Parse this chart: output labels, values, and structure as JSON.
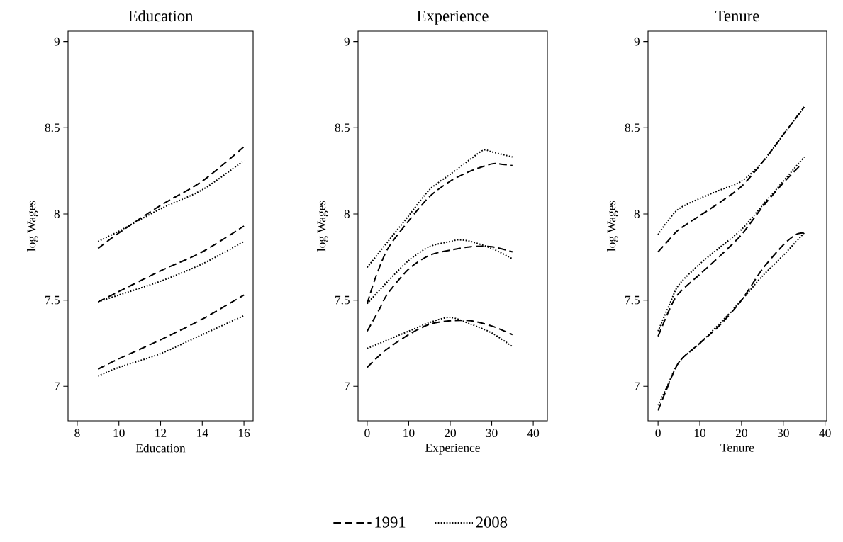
{
  "chart_data": [
    {
      "type": "line",
      "title": "Education",
      "xlabel": "Education",
      "ylabel": "log Wages",
      "xlim": [
        7.56,
        16.44
      ],
      "ylim": [
        6.8,
        9.06
      ],
      "xticks": [
        8,
        10,
        12,
        14,
        16
      ],
      "yticks": [
        7,
        7.5,
        8,
        8.5,
        9
      ],
      "legend": "bottom",
      "series": [
        {
          "name": "1991",
          "color": "#000000",
          "line_style": "dashed",
          "x": [
            9,
            10,
            12,
            14,
            16
          ],
          "values": [
            7.8,
            7.89,
            8.05,
            8.19,
            8.39
          ]
        },
        {
          "name": "2008",
          "color": "#000000",
          "line_style": "dotted",
          "x": [
            9,
            10,
            12,
            14,
            16
          ],
          "values": [
            7.84,
            7.9,
            8.03,
            8.14,
            8.31
          ]
        },
        {
          "color": "#000000",
          "line_style": "dashed",
          "x": [
            9,
            10,
            12,
            14,
            16
          ],
          "values": [
            7.49,
            7.55,
            7.67,
            7.78,
            7.93
          ]
        },
        {
          "color": "#000000",
          "line_style": "dotted",
          "x": [
            9,
            10,
            12,
            14,
            16
          ],
          "values": [
            7.49,
            7.53,
            7.61,
            7.71,
            7.84
          ]
        },
        {
          "color": "#000000",
          "line_style": "dashed",
          "x": [
            9,
            10,
            12,
            14,
            16
          ],
          "values": [
            7.1,
            7.16,
            7.27,
            7.39,
            7.53
          ]
        },
        {
          "color": "#000000",
          "line_style": "dotted",
          "x": [
            9,
            10,
            12,
            14,
            16
          ],
          "values": [
            7.06,
            7.11,
            7.19,
            7.3,
            7.41
          ]
        }
      ]
    },
    {
      "type": "line",
      "title": "Experience",
      "xlabel": "Experience",
      "ylabel": "log Wages",
      "xlim": [
        -2.2,
        43.4
      ],
      "ylim": [
        6.8,
        9.06
      ],
      "xticks": [
        0,
        10,
        20,
        30,
        40
      ],
      "yticks": [
        7,
        7.5,
        8,
        8.5,
        9
      ],
      "series": [
        {
          "color": "#000000",
          "line_style": "dashed",
          "x": [
            0,
            2,
            5,
            10,
            15,
            20,
            25,
            30,
            32,
            35
          ],
          "values": [
            7.48,
            7.63,
            7.8,
            7.96,
            8.1,
            8.19,
            8.25,
            8.29,
            8.29,
            8.28
          ]
        },
        {
          "color": "#000000",
          "line_style": "dotted",
          "x": [
            0,
            5,
            10,
            15,
            20,
            25,
            28,
            30,
            35
          ],
          "values": [
            7.69,
            7.84,
            7.99,
            8.14,
            8.23,
            8.32,
            8.37,
            8.36,
            8.33
          ]
        },
        {
          "color": "#000000",
          "line_style": "dashed",
          "x": [
            0,
            3,
            5,
            10,
            15,
            20,
            25,
            30,
            35
          ],
          "values": [
            7.32,
            7.45,
            7.54,
            7.68,
            7.76,
            7.79,
            7.81,
            7.81,
            7.78
          ]
        },
        {
          "color": "#000000",
          "line_style": "dotted",
          "x": [
            0,
            5,
            10,
            15,
            20,
            22,
            25,
            30,
            35
          ],
          "values": [
            7.48,
            7.61,
            7.73,
            7.81,
            7.84,
            7.85,
            7.84,
            7.8,
            7.74
          ]
        },
        {
          "color": "#000000",
          "line_style": "dashed",
          "x": [
            0,
            3,
            5,
            10,
            15,
            20,
            25,
            30,
            35
          ],
          "values": [
            7.11,
            7.18,
            7.22,
            7.3,
            7.36,
            7.38,
            7.38,
            7.35,
            7.3
          ]
        },
        {
          "color": "#000000",
          "line_style": "dotted",
          "x": [
            0,
            5,
            10,
            15,
            20,
            25,
            30,
            35
          ],
          "values": [
            7.22,
            7.27,
            7.32,
            7.37,
            7.4,
            7.36,
            7.31,
            7.23
          ]
        }
      ]
    },
    {
      "type": "line",
      "title": "Tenure",
      "xlabel": "Tenure",
      "ylabel": "log Wages",
      "xlim": [
        -2.4,
        40.4
      ],
      "ylim": [
        6.8,
        9.06
      ],
      "xticks": [
        0,
        10,
        20,
        30,
        40
      ],
      "yticks": [
        7,
        7.5,
        8,
        8.5,
        9
      ],
      "series": [
        {
          "color": "#000000",
          "line_style": "dashed",
          "x": [
            0,
            3,
            5,
            10,
            15,
            20,
            25,
            30,
            35
          ],
          "values": [
            7.78,
            7.86,
            7.91,
            7.99,
            8.07,
            8.16,
            8.3,
            8.46,
            8.62
          ]
        },
        {
          "color": "#000000",
          "line_style": "dotted",
          "x": [
            0,
            2,
            5,
            10,
            15,
            20,
            25,
            30,
            35
          ],
          "values": [
            7.88,
            7.95,
            8.03,
            8.09,
            8.14,
            8.19,
            8.3,
            8.46,
            8.62
          ]
        },
        {
          "color": "#000000",
          "line_style": "dashed",
          "x": [
            0,
            3,
            5,
            10,
            15,
            20,
            25,
            30,
            34
          ],
          "values": [
            7.29,
            7.46,
            7.54,
            7.65,
            7.76,
            7.88,
            8.04,
            8.18,
            8.28
          ]
        },
        {
          "color": "#000000",
          "line_style": "dotted",
          "x": [
            0,
            3,
            5,
            10,
            15,
            20,
            25,
            30,
            35
          ],
          "values": [
            7.32,
            7.49,
            7.59,
            7.71,
            7.81,
            7.91,
            8.05,
            8.19,
            8.33
          ]
        },
        {
          "color": "#000000",
          "line_style": "dashed",
          "x": [
            0,
            2,
            5,
            10,
            15,
            20,
            25,
            30,
            33,
            35
          ],
          "values": [
            6.86,
            6.98,
            7.14,
            7.25,
            7.36,
            7.5,
            7.68,
            7.82,
            7.88,
            7.89
          ]
        },
        {
          "color": "#000000",
          "line_style": "dotted",
          "x": [
            0,
            2,
            5,
            10,
            15,
            20,
            25,
            30,
            35
          ],
          "values": [
            6.89,
            6.99,
            7.14,
            7.25,
            7.37,
            7.5,
            7.64,
            7.76,
            7.89
          ]
        }
      ]
    }
  ]
}
